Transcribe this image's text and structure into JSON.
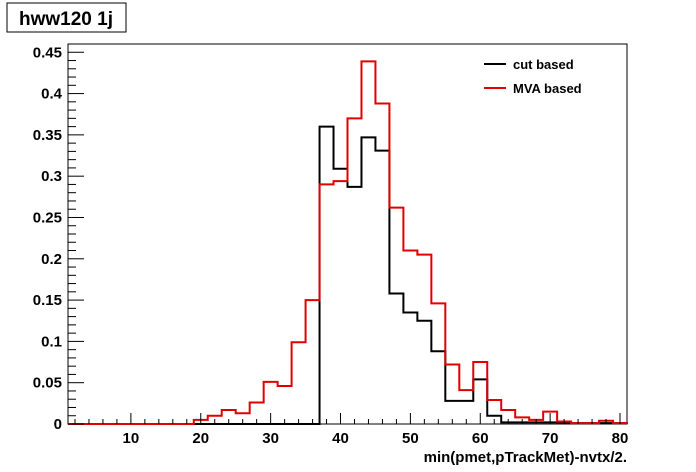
{
  "chart_data": {
    "type": "line",
    "style": "step-histogram",
    "title": "hww120 1j",
    "xlabel": "min(pmet,pTrackMet)-nvtx/2.",
    "ylabel": "",
    "xlim": [
      1,
      81
    ],
    "ylim": [
      0,
      0.46
    ],
    "bin_width": 2,
    "x_bin_edges": [
      1,
      3,
      5,
      7,
      9,
      11,
      13,
      15,
      17,
      19,
      21,
      23,
      25,
      27,
      29,
      31,
      33,
      35,
      37,
      39,
      41,
      43,
      45,
      47,
      49,
      51,
      53,
      55,
      57,
      59,
      61,
      63,
      65,
      67,
      69,
      71,
      73,
      75,
      77,
      79,
      81
    ],
    "x_ticks": [
      10,
      20,
      30,
      40,
      50,
      60,
      70,
      80
    ],
    "x_tick_labels": [
      "10",
      "20",
      "30",
      "40",
      "50",
      "60",
      "70",
      "80"
    ],
    "y_ticks": [
      0,
      0.05,
      0.1,
      0.15,
      0.2,
      0.25,
      0.3,
      0.35,
      0.4,
      0.45
    ],
    "y_tick_labels": [
      "0",
      "0.05",
      "0.1",
      "0.15",
      "0.2",
      "0.25",
      "0.3",
      "0.35",
      "0.4",
      "0.45"
    ],
    "grid": false,
    "legend_position": "top-right",
    "series": [
      {
        "name": "cut based",
        "color": "#000000",
        "values": [
          0,
          0,
          0,
          0,
          0,
          0,
          0,
          0,
          0,
          0,
          0,
          0,
          0,
          0,
          0,
          0,
          0,
          0,
          0.36,
          0.309,
          0.287,
          0.347,
          0.331,
          0.158,
          0.135,
          0.125,
          0.088,
          0.028,
          0.028,
          0.054,
          0.01,
          0.002,
          0.002,
          0.002,
          0.002,
          0.001,
          0.001,
          0.001,
          0.001,
          0.001
        ]
      },
      {
        "name": "MVA based",
        "color": "#e00000",
        "values": [
          0,
          0,
          0,
          0,
          0,
          0,
          0,
          0,
          0,
          0.005,
          0.01,
          0.017,
          0.013,
          0.026,
          0.051,
          0.046,
          0.099,
          0.15,
          0.29,
          0.294,
          0.37,
          0.439,
          0.388,
          0.262,
          0.21,
          0.205,
          0.146,
          0.072,
          0.041,
          0.075,
          0.029,
          0.017,
          0.008,
          0.005,
          0.015,
          0.003,
          0.001,
          0.001,
          0.004,
          0.001
        ]
      }
    ]
  }
}
